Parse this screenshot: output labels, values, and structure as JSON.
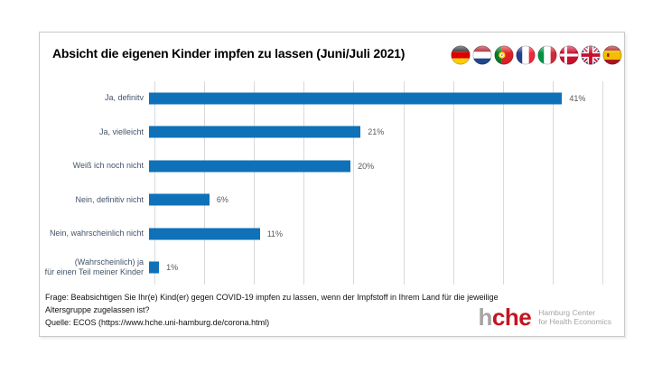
{
  "header": {
    "flags": [
      "Germany",
      "Netherlands",
      "Portugal",
      "France",
      "Italy",
      "Denmark",
      "United Kingdom",
      "Spain"
    ]
  },
  "chart_data": {
    "type": "bar",
    "orientation": "horizontal",
    "title": "Absicht die eigenen Kinder impfen zu lassen (Juni/Juli 2021)",
    "categories": [
      "Ja, definitv",
      "Ja, vielleicht",
      "Weiß ich noch nicht",
      "Nein, definitiv nicht",
      "Nein, wahrscheinlich nicht",
      "(Wahrscheinlich) ja\nfür einen Teil meiner Kinder"
    ],
    "values": [
      41,
      21,
      20,
      6,
      11,
      1
    ],
    "value_labels": [
      "41%",
      "21%",
      "20%",
      "6%",
      "11%",
      "1%"
    ],
    "xlim": [
      0,
      45
    ],
    "gridline_step_pct": 5,
    "grid": true,
    "x_axis_tick_labels": "none",
    "legend": "none"
  },
  "footer": {
    "question": "Frage: Beabsichtigen Sie Ihr(e) Kind(er) gegen COVID-19 impfen zu lassen, wenn der Impfstoff in Ihrem Land für die jeweilige Altersgruppe zugelassen ist?",
    "source": "Quelle: ECOS (https://www.hche.uni-hamburg.de/corona.html)"
  },
  "logo": {
    "wordmark_gray": "h",
    "wordmark_red": "che",
    "subtitle_line1": "Hamburg Center",
    "subtitle_line2": "for Health Economics"
  },
  "colors": {
    "bar": "#0F71B8",
    "category_label": "#44546A",
    "value_label": "#595959",
    "gridline": "#D9D9D9",
    "logo_gray": "#A6A5A4",
    "logo_red": "#C31622",
    "footer_text": "#111111"
  }
}
